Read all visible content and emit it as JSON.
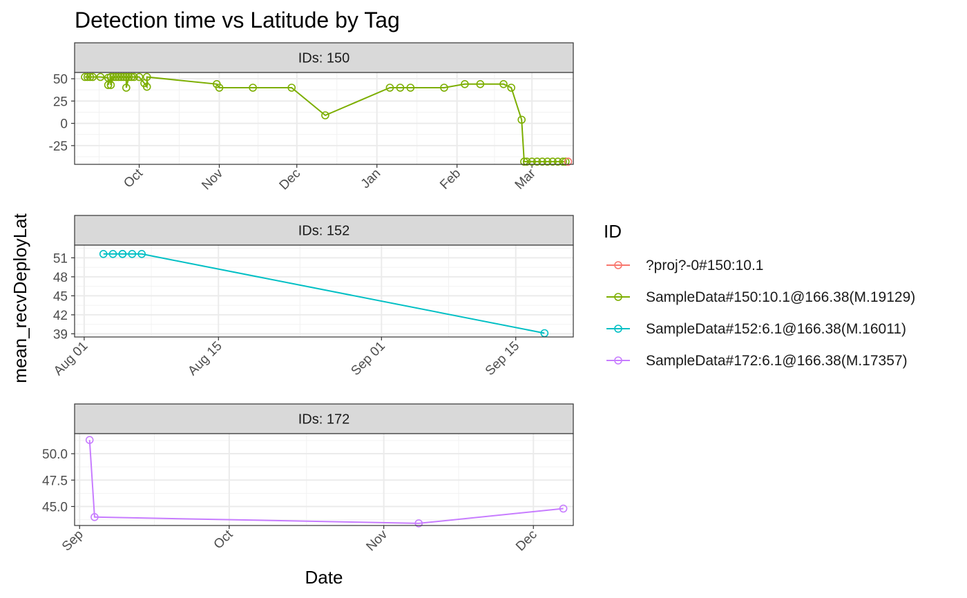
{
  "chart_data": {
    "type": "line",
    "title": "Detection time vs Latitude by Tag",
    "xlabel": "Date",
    "ylabel": "mean_recvDeployLat",
    "legend": {
      "title": "ID",
      "position": "right",
      "entries": [
        {
          "name": "?proj?-0#150:10.1",
          "color": "#F8766D"
        },
        {
          "name": "SampleData#150:10.1@166.38(M.19129)",
          "color": "#7CAE00"
        },
        {
          "name": "SampleData#152:6.1@166.38(M.16011)",
          "color": "#00BFC4"
        },
        {
          "name": "SampleData#172:6.1@166.38(M.17357)",
          "color": "#C77CFF"
        }
      ]
    },
    "grid": true,
    "facets": [
      {
        "strip_label": "IDs: 150",
        "xlim": [
          "2023-09-06",
          "2024-03-17"
        ],
        "ylim": [
          -46,
          57
        ],
        "x_ticks": [
          {
            "date": "2023-10-01",
            "label": "Oct"
          },
          {
            "date": "2023-11-01",
            "label": "Nov"
          },
          {
            "date": "2023-12-01",
            "label": "Dec"
          },
          {
            "date": "2024-01-01",
            "label": "Jan"
          },
          {
            "date": "2024-02-01",
            "label": "Feb"
          },
          {
            "date": "2024-03-01",
            "label": "Mar"
          }
        ],
        "y_ticks": [
          {
            "value": 50,
            "label": "50"
          },
          {
            "value": 25,
            "label": "25"
          },
          {
            "value": 0,
            "label": "0"
          },
          {
            "value": -25,
            "label": "-25"
          }
        ],
        "series": [
          {
            "legend_index": 1,
            "x": [
              "2023-09-10",
              "2023-09-11",
              "2023-09-12",
              "2023-09-13",
              "2023-09-16",
              "2023-09-19",
              "2023-09-19",
              "2023-09-20",
              "2023-09-20",
              "2023-09-21",
              "2023-09-22",
              "2023-09-23",
              "2023-09-24",
              "2023-09-25",
              "2023-09-26",
              "2023-09-26",
              "2023-09-27",
              "2023-09-28",
              "2023-09-29",
              "2023-10-01",
              "2023-10-03",
              "2023-10-04",
              "2023-10-04",
              "2023-10-31",
              "2023-11-01",
              "2023-11-14",
              "2023-11-29",
              "2023-12-12",
              "2024-01-06",
              "2024-01-10",
              "2024-01-14",
              "2024-01-27",
              "2024-02-04",
              "2024-02-10",
              "2024-02-19",
              "2024-02-22",
              "2024-02-26",
              "2024-02-27",
              "2024-02-28",
              "2024-03-01",
              "2024-03-03",
              "2024-03-05",
              "2024-03-07",
              "2024-03-09",
              "2024-03-11",
              "2024-03-13",
              "2024-03-14"
            ],
            "y": [
              52,
              52,
              52,
              52,
              52,
              51,
              43,
              52,
              43,
              52,
              52,
              52,
              52,
              52,
              52,
              40,
              52,
              52,
              52,
              52,
              45,
              41,
              52,
              44,
              40,
              40,
              40,
              9,
              40,
              40,
              40,
              40,
              44,
              44,
              44,
              40,
              4,
              -43,
              -43,
              -43,
              -43,
              -43,
              -43,
              -43,
              -43,
              -43,
              -43
            ]
          },
          {
            "legend_index": 0,
            "x": [
              "2024-03-15"
            ],
            "y": [
              -43
            ]
          }
        ]
      },
      {
        "strip_label": "IDs: 152",
        "xlim": [
          "2023-07-31",
          "2023-09-21"
        ],
        "ylim": [
          38.5,
          53
        ],
        "x_ticks": [
          {
            "date": "2023-08-01",
            "label": "Aug 01"
          },
          {
            "date": "2023-08-15",
            "label": "Aug 15"
          },
          {
            "date": "2023-09-01",
            "label": "Sep 01"
          },
          {
            "date": "2023-09-15",
            "label": "Sep 15"
          }
        ],
        "y_ticks": [
          {
            "value": 51,
            "label": "51"
          },
          {
            "value": 48,
            "label": "48"
          },
          {
            "value": 45,
            "label": "45"
          },
          {
            "value": 42,
            "label": "42"
          },
          {
            "value": 39,
            "label": "39"
          }
        ],
        "series": [
          {
            "legend_index": 2,
            "x": [
              "2023-08-03",
              "2023-08-04",
              "2023-08-05",
              "2023-08-05",
              "2023-08-06",
              "2023-08-07",
              "2023-09-18"
            ],
            "y": [
              51.6,
              51.6,
              51.6,
              51.6,
              51.6,
              51.6,
              39.1
            ]
          }
        ]
      },
      {
        "strip_label": "IDs: 172",
        "xlim": [
          "2023-08-31",
          "2023-12-09"
        ],
        "ylim": [
          43.2,
          51.9
        ],
        "x_ticks": [
          {
            "date": "2023-09-01",
            "label": "Sep"
          },
          {
            "date": "2023-10-01",
            "label": "Oct"
          },
          {
            "date": "2023-11-01",
            "label": "Nov"
          },
          {
            "date": "2023-12-01",
            "label": "Dec"
          }
        ],
        "y_ticks": [
          {
            "value": 50.0,
            "label": "50.0"
          },
          {
            "value": 47.5,
            "label": "47.5"
          },
          {
            "value": 45.0,
            "label": "45.0"
          }
        ],
        "series": [
          {
            "legend_index": 3,
            "x": [
              "2023-09-03",
              "2023-09-04",
              "2023-11-08",
              "2023-12-07"
            ],
            "y": [
              51.3,
              44.0,
              43.4,
              44.8
            ]
          }
        ]
      }
    ]
  }
}
